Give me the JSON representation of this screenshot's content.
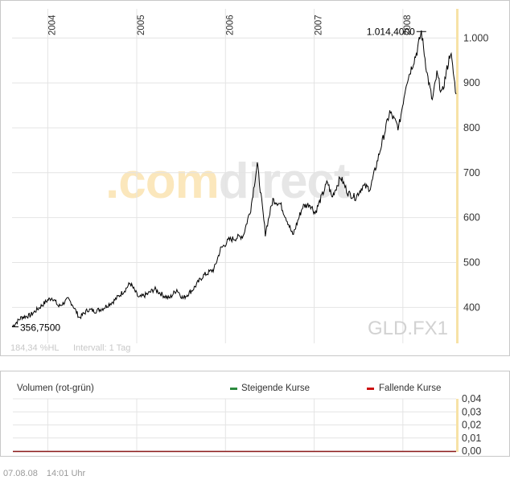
{
  "chart_data": {
    "type": "line",
    "symbol": "GLD.FX1",
    "watermark": ".comdirect",
    "info_left": "184,34 %HL",
    "info_interval": "Intervall: 1 Tag",
    "year_labels": [
      "2004",
      "2005",
      "2006",
      "2007",
      "2008"
    ],
    "y_ticks": [
      "400",
      "500",
      "600",
      "700",
      "800",
      "900",
      "1.000"
    ],
    "ylim": [
      320,
      1065
    ],
    "x_domain": [
      "2003-08-07",
      "2008-08-07"
    ],
    "min_label": "356,7500",
    "max_label": "1.014,4000",
    "min_point": {
      "date": "2003-08-07",
      "value": 356.75
    },
    "max_point": {
      "date": "2008-03-17",
      "value": 1014.4
    },
    "series": [
      {
        "values": [
          [
            "2003-08-07",
            357
          ],
          [
            "2003-09-15",
            378
          ],
          [
            "2003-10-20",
            382
          ],
          [
            "2003-11-20",
            396
          ],
          [
            "2003-12-31",
            416
          ],
          [
            "2004-01-20",
            422
          ],
          [
            "2004-02-15",
            402
          ],
          [
            "2004-03-25",
            418
          ],
          [
            "2004-04-10",
            408
          ],
          [
            "2004-05-10",
            377
          ],
          [
            "2004-06-15",
            395
          ],
          [
            "2004-07-15",
            392
          ],
          [
            "2004-08-15",
            398
          ],
          [
            "2004-09-30",
            415
          ],
          [
            "2004-11-15",
            440
          ],
          [
            "2004-12-05",
            454
          ],
          [
            "2005-01-10",
            421
          ],
          [
            "2005-02-15",
            430
          ],
          [
            "2005-03-15",
            441
          ],
          [
            "2005-04-20",
            427
          ],
          [
            "2005-05-15",
            420
          ],
          [
            "2005-06-15",
            440
          ],
          [
            "2005-07-10",
            420
          ],
          [
            "2005-08-20",
            440
          ],
          [
            "2005-09-30",
            470
          ],
          [
            "2005-11-15",
            485
          ],
          [
            "2005-12-12",
            530
          ],
          [
            "2006-01-15",
            550
          ],
          [
            "2006-02-15",
            555
          ],
          [
            "2006-03-15",
            560
          ],
          [
            "2006-04-15",
            620
          ],
          [
            "2006-05-12",
            720
          ],
          [
            "2006-06-14",
            565
          ],
          [
            "2006-07-15",
            640
          ],
          [
            "2006-08-15",
            630
          ],
          [
            "2006-09-15",
            590
          ],
          [
            "2006-10-05",
            560
          ],
          [
            "2006-11-15",
            625
          ],
          [
            "2006-12-15",
            630
          ],
          [
            "2007-01-05",
            610
          ],
          [
            "2007-02-25",
            680
          ],
          [
            "2007-03-15",
            645
          ],
          [
            "2007-04-20",
            690
          ],
          [
            "2007-05-20",
            655
          ],
          [
            "2007-06-20",
            645
          ],
          [
            "2007-07-20",
            670
          ],
          [
            "2007-08-20",
            665
          ],
          [
            "2007-09-20",
            730
          ],
          [
            "2007-11-08",
            835
          ],
          [
            "2007-12-15",
            800
          ],
          [
            "2008-01-15",
            900
          ],
          [
            "2008-02-28",
            970
          ],
          [
            "2008-03-17",
            1014
          ],
          [
            "2008-04-10",
            920
          ],
          [
            "2008-05-01",
            860
          ],
          [
            "2008-05-20",
            920
          ],
          [
            "2008-06-10",
            875
          ],
          [
            "2008-07-15",
            970
          ],
          [
            "2008-08-07",
            875
          ]
        ]
      }
    ]
  },
  "volume_chart": {
    "title": "Volumen (rot-grün)",
    "legend_up": "Steigende Kurse",
    "legend_down": "Fallende Kurse",
    "color_up": "#2b8a3e",
    "color_down": "#cc1111",
    "y_ticks": [
      "0,00",
      "0,01",
      "0,02",
      "0,03",
      "0,04"
    ],
    "ylim": [
      0,
      0.04
    ]
  },
  "footer": {
    "date": "07.08.08",
    "time": "14:01 Uhr"
  },
  "colors": {
    "line": "#000000",
    "grid": "#e4e4e4",
    "right_axis_bar": "#f7e2a6",
    "watermark_orange": "#fbe7bc",
    "watermark_gray": "#e6e6e6",
    "muted_text": "#c8c8c8"
  }
}
